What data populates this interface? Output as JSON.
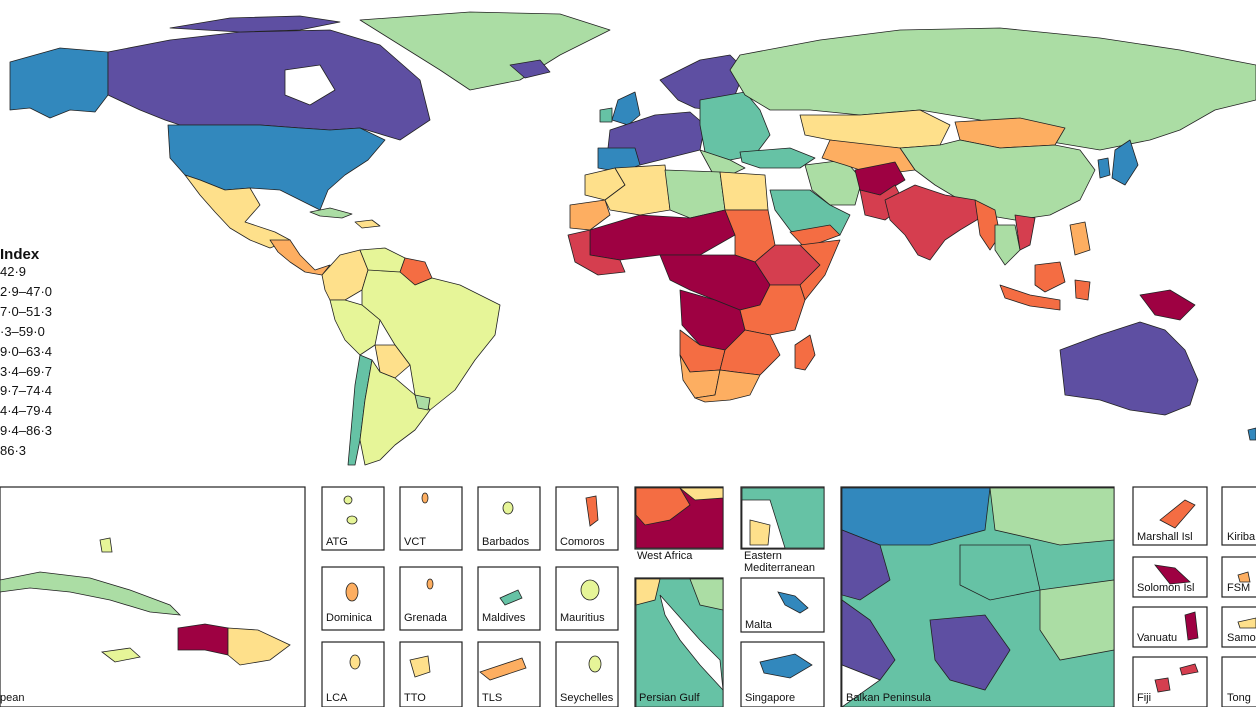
{
  "legend": {
    "title": "Index",
    "items": [
      {
        "label": "42·9",
        "color": "#9e0142"
      },
      {
        "label": "2·9–47·0",
        "color": "#d53e4f"
      },
      {
        "label": "7·0–51·3",
        "color": "#f46d43"
      },
      {
        "label": "·3–59·0",
        "color": "#fdae61"
      },
      {
        "label": "9·0–63·4",
        "color": "#fee08b"
      },
      {
        "label": "3·4–69·7",
        "color": "#e6f598"
      },
      {
        "label": "9·7–74·4",
        "color": "#abdda4"
      },
      {
        "label": "4·4–79·4",
        "color": "#66c2a5"
      },
      {
        "label": "9·4–86·3",
        "color": "#3288bd"
      },
      {
        "label": "86·3",
        "color": "#5e4fa2"
      }
    ]
  },
  "insets": {
    "caribbean": "pean",
    "atg": "ATG",
    "vct": "VCT",
    "barbados": "Barbados",
    "comoros": "Comoros",
    "dominica": "Dominica",
    "grenada": "Grenada",
    "maldives": "Maldives",
    "mauritius": "Mauritius",
    "lca": "LCA",
    "tto": "TTO",
    "tls": "TLS",
    "seychelles": "Seychelles",
    "west_africa": "West Africa",
    "eastern_med_1": "Eastern",
    "eastern_med_2": "Mediterranean",
    "persian_gulf": "Persian Gulf",
    "malta": "Malta",
    "singapore": "Singapore",
    "balkan": "Balkan Peninsula",
    "marshall": "Marshall Isl",
    "kiribati": "Kiriba",
    "solomon": "Solomon Isl",
    "fsm": "FSM",
    "vanuatu": "Vanuatu",
    "samoa": "Samo",
    "fiji": "Fiji",
    "tonga": "Tong"
  }
}
